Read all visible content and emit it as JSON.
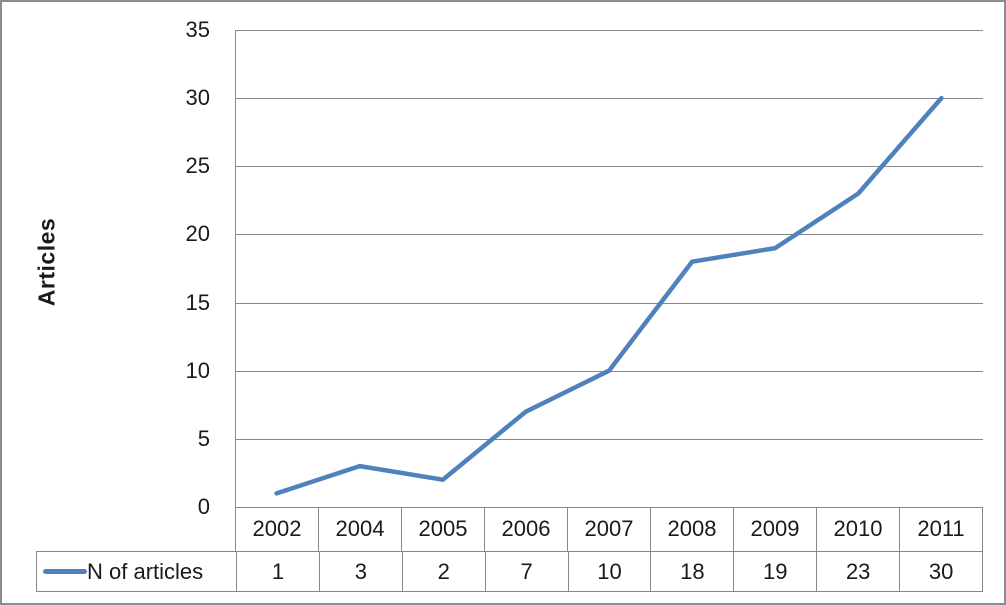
{
  "chart_data": {
    "type": "line",
    "title": "",
    "ylabel": "Articles",
    "xlabel": "",
    "categories": [
      "2002",
      "2004",
      "2005",
      "2006",
      "2007",
      "2008",
      "2009",
      "2010",
      "2011"
    ],
    "series": [
      {
        "name": "N of articles",
        "values": [
          1,
          3,
          2,
          7,
          10,
          18,
          19,
          23,
          30
        ]
      }
    ],
    "ylim": [
      0,
      35
    ],
    "y_ticks": [
      35,
      30,
      25,
      20,
      15,
      10,
      5,
      0
    ],
    "grid": "horizontal",
    "legend_position": "data-table-left",
    "data_table_shown": true,
    "colors": {
      "line": "#4F81BD",
      "gridline": "#878787",
      "text": "#1a1a1a",
      "frame_border": "#8c8c8c",
      "background": "#ffffff"
    }
  }
}
